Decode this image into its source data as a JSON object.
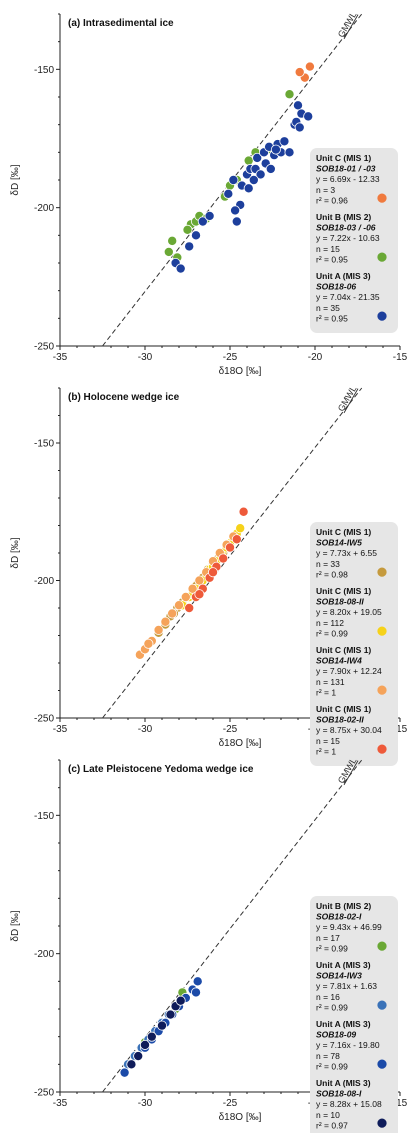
{
  "chart_data": [
    {
      "type": "scatter",
      "title": "(a) Intrasedimental ice",
      "xlabel": "δ18O [‰]",
      "ylabel": "δD [‰]",
      "xlim": [
        -35,
        -15
      ],
      "ylim": [
        -250,
        -130
      ],
      "xticks": [
        "-35",
        "-30",
        "-25",
        "-20",
        "-15"
      ],
      "yticks": [
        "-250",
        "-200",
        "-150"
      ],
      "reference_line": {
        "label": "GMWL",
        "slope": 8,
        "intercept": 10
      },
      "series": [
        {
          "unit": "Unit C (MIS 1)",
          "sample": "SOB18-01 / -03",
          "equation": "y =  6.69x - 12.33",
          "n": "n = 3",
          "r2": "r² = 0.96",
          "color": "#f07a3e",
          "x": [
            -20.6,
            -20.3,
            -20.9
          ],
          "y": [
            -153,
            -149,
            -151
          ]
        },
        {
          "unit": "Unit B (MIS 2)",
          "sample": "SOB18-03 / -06",
          "equation": "y =  7.22x - 10.63",
          "n": "n = 15",
          "r2": "r² = 0.95",
          "color": "#6aa835",
          "x": [
            -28.6,
            -28.4,
            -28.1,
            -27.3,
            -27.0,
            -26.8,
            -26.4,
            -25.3,
            -25.0,
            -24.6,
            -23.9,
            -23.5,
            -21.5,
            -22.8,
            -27.5
          ],
          "y": [
            -216,
            -212,
            -218,
            -206,
            -205,
            -203,
            -204,
            -196,
            -192,
            -190,
            -183,
            -180,
            -159,
            -179,
            -208
          ]
        },
        {
          "unit": "Unit A (MIS 3)",
          "sample": "SOB18-06",
          "equation": "y =  7.04x - 21.35",
          "n": "n = 35",
          "r2": "r² = 0.95",
          "color": "#1d3f9c",
          "x": [
            -28.2,
            -27.9,
            -27.4,
            -27.0,
            -26.6,
            -26.2,
            -25.1,
            -24.8,
            -24.6,
            -24.3,
            -24.0,
            -23.8,
            -23.5,
            -23.4,
            -23.2,
            -23.0,
            -22.7,
            -22.4,
            -22.2,
            -22.0,
            -21.8,
            -21.5,
            -21.2,
            -21.0,
            -20.8,
            -20.4,
            -23.6,
            -23.9,
            -24.4,
            -22.9,
            -22.6,
            -21.1,
            -20.9,
            -24.7,
            -22.3
          ],
          "y": [
            -220,
            -222,
            -214,
            -210,
            -205,
            -203,
            -195,
            -190,
            -205,
            -192,
            -188,
            -186,
            -186,
            -182,
            -188,
            -180,
            -178,
            -181,
            -177,
            -180,
            -176,
            -180,
            -170,
            -163,
            -166,
            -167,
            -190,
            -193,
            -199,
            -184,
            -186,
            -169,
            -171,
            -201,
            -179
          ]
        }
      ]
    },
    {
      "type": "scatter",
      "title": "(b) Holocene wedge ice",
      "xlabel": "δ18O [‰]",
      "ylabel": "δD [‰]",
      "xlim": [
        -35,
        -15
      ],
      "ylim": [
        -250,
        -130
      ],
      "xticks": [
        "-35",
        "-30",
        "-25",
        "-20",
        "-15"
      ],
      "yticks": [
        "-250",
        "-200",
        "-150"
      ],
      "reference_line": {
        "label": "GMWL",
        "slope": 8,
        "intercept": 10
      },
      "series": [
        {
          "unit": "Unit C (MIS 1)",
          "sample": "SOB14-IW5",
          "equation": "y = 7.73x + 6.55",
          "n": "n = 33",
          "r2": "r² = 0.98",
          "color": "#c59a3d",
          "x": [
            -29.2,
            -28.8,
            -28.5,
            -28.1,
            -27.8,
            -27.5,
            -27.2,
            -26.9,
            -26.6,
            -26.3,
            -26.0,
            -25.7,
            -25.4,
            -28.3,
            -27.0
          ],
          "y": [
            -219,
            -216,
            -213,
            -210,
            -208,
            -206,
            -203,
            -201,
            -199,
            -196,
            -194,
            -192,
            -190,
            -212,
            -202
          ]
        },
        {
          "unit": "Unit C (MIS 1)",
          "sample": "SOB18-08-II",
          "equation": "y = 8.20x + 19.05",
          "n": "n = 112",
          "r2": "r² = 0.99",
          "color": "#f6d21a",
          "x": [
            -27.8,
            -27.4,
            -27.0,
            -26.6,
            -26.2,
            -25.8,
            -25.5,
            -25.2,
            -24.9,
            -24.6,
            -24.4,
            -26.0,
            -25.0,
            -27.2
          ],
          "y": [
            -209,
            -206,
            -203,
            -200,
            -196,
            -193,
            -190,
            -188,
            -186,
            -183,
            -181,
            -195,
            -187,
            -205
          ]
        },
        {
          "unit": "Unit C (MIS 1)",
          "sample": "SOB14-IW4",
          "equation": "y = 7.90x + 12.24",
          "n": "n = 131",
          "r2": "r² = 1",
          "color": "#f5a35a",
          "x": [
            -30.3,
            -30.0,
            -29.6,
            -29.2,
            -28.8,
            -28.4,
            -28.0,
            -27.6,
            -27.2,
            -26.8,
            -26.4,
            -26.0,
            -25.6,
            -25.2,
            -24.8,
            -29.8
          ],
          "y": [
            -227,
            -225,
            -222,
            -218,
            -215,
            -212,
            -209,
            -206,
            -203,
            -200,
            -197,
            -193,
            -190,
            -187,
            -184,
            -223
          ]
        },
        {
          "unit": "Unit C (MIS 1)",
          "sample": "SOB18-02-II",
          "equation": "y = 8.75x + 30.04",
          "n": "n = 15",
          "r2": "r² = 1",
          "color": "#ee5a3a",
          "x": [
            -27.4,
            -27.0,
            -26.6,
            -26.2,
            -25.8,
            -25.4,
            -25.0,
            -24.6,
            -24.2,
            -26.0,
            -26.8
          ],
          "y": [
            -210,
            -206,
            -203,
            -199,
            -195,
            -192,
            -188,
            -185,
            -175,
            -197,
            -205
          ]
        }
      ]
    },
    {
      "type": "scatter",
      "title": "(c) Late Pleistocene Yedoma wedge ice",
      "xlabel": "δ18O [‰]",
      "ylabel": "δD [‰]",
      "xlim": [
        -35,
        -15
      ],
      "ylim": [
        -250,
        -130
      ],
      "xticks": [
        "-35",
        "-30",
        "-25",
        "-20",
        "-15"
      ],
      "yticks": [
        "-250",
        "-200",
        "-150"
      ],
      "reference_line": {
        "label": "GMWL",
        "slope": 8,
        "intercept": 10
      },
      "series": [
        {
          "unit": "Unit B (MIS 2)",
          "sample": "SOB18-02-I",
          "equation": "y = 9.43x + 46.99",
          "n": "n = 17",
          "r2": "r² = 0.99",
          "color": "#6aa835",
          "x": [
            -28.2,
            -27.8,
            -29.4,
            -30.0,
            -29.0
          ],
          "y": [
            -220,
            -214,
            -228,
            -232,
            -225
          ]
        },
        {
          "unit": "Unit A (MIS 3)",
          "sample": "SOB14-IW3",
          "equation": "y =  7.81x + 1.63",
          "n": "n = 16",
          "r2": "r² = 0.99",
          "color": "#3a72b8",
          "x": [
            -31.0,
            -30.6,
            -30.2,
            -29.8,
            -29.4,
            -29.0,
            -28.6,
            -28.2
          ],
          "y": [
            -240,
            -237,
            -234,
            -231,
            -228,
            -225,
            -222,
            -219
          ]
        },
        {
          "unit": "Unit A (MIS 3)",
          "sample": "SOB18-09",
          "equation": "y = 7.16x - 19.80",
          "n": "n = 78",
          "r2": "r² = 0.99",
          "color": "#1b4aa8",
          "x": [
            -31.2,
            -30.8,
            -30.4,
            -30.0,
            -29.6,
            -29.2,
            -28.8,
            -28.4,
            -28.0,
            -27.6,
            -27.2,
            -26.9,
            -27.0
          ],
          "y": [
            -243,
            -240,
            -237,
            -234,
            -231,
            -228,
            -225,
            -222,
            -219,
            -216,
            -213,
            -210,
            -214
          ]
        },
        {
          "unit": "Unit A (MIS 3)",
          "sample": "SOB18-08-I",
          "equation": "y = 8.28x + 15.08",
          "n": "n = 10",
          "r2": "r² = 0.97",
          "color": "#0f1c5a",
          "x": [
            -30.8,
            -30.4,
            -30.0,
            -29.6,
            -29.0,
            -28.5,
            -28.2,
            -27.9
          ],
          "y": [
            -240,
            -237,
            -233,
            -230,
            -226,
            -222,
            -219,
            -217
          ]
        }
      ]
    }
  ]
}
